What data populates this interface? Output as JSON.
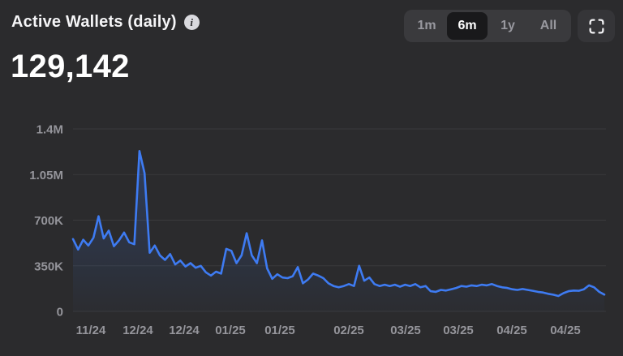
{
  "header": {
    "title": "Active Wallets (daily)",
    "info_icon": "info",
    "value": "129,142",
    "ranges": [
      {
        "label": "1m",
        "selected": false
      },
      {
        "label": "6m",
        "selected": true
      },
      {
        "label": "1y",
        "selected": false
      },
      {
        "label": "All",
        "selected": false
      }
    ],
    "fullscreen_icon": "fullscreen-expand"
  },
  "colors": {
    "background": "#2b2b2d",
    "line": "#3e7bf2",
    "grid": "#3a3a3d",
    "axis_text": "#95959b",
    "selected_pill": "#19191b",
    "segment_bg": "#3a3a3d"
  },
  "chart_data": {
    "type": "line",
    "title": "Active Wallets (daily)",
    "current_value": 129142,
    "unit": "wallets",
    "legend": "none",
    "grid": "horizontal",
    "ylim": [
      0,
      1400000
    ],
    "y_axis": {
      "ticks": [
        "1.4M",
        "1.05M",
        "700K",
        "350K",
        "0"
      ],
      "tick_values": [
        1400000,
        1050000,
        700000,
        350000,
        0
      ]
    },
    "x_axis": {
      "ticks": [
        "11/24",
        "12/24",
        "12/24",
        "01/25",
        "01/25",
        "02/25",
        "03/25",
        "03/25",
        "04/25",
        "04/25"
      ],
      "tick_x": [
        112,
        170,
        227,
        284,
        345,
        430,
        500,
        565,
        631,
        697
      ]
    },
    "series": [
      {
        "name": "Active Wallets (daily)",
        "color": "#3e7bf2",
        "values_thousands": [
          555,
          475,
          550,
          505,
          565,
          730,
          560,
          620,
          500,
          545,
          605,
          530,
          515,
          1230,
          1060,
          450,
          505,
          430,
          395,
          440,
          360,
          390,
          345,
          370,
          335,
          350,
          300,
          275,
          305,
          290,
          480,
          465,
          370,
          430,
          600,
          430,
          370,
          545,
          330,
          250,
          285,
          260,
          255,
          270,
          340,
          215,
          245,
          290,
          275,
          255,
          215,
          195,
          185,
          195,
          210,
          195,
          350,
          235,
          260,
          210,
          195,
          205,
          195,
          205,
          190,
          205,
          195,
          210,
          185,
          195,
          155,
          150,
          165,
          160,
          170,
          180,
          195,
          190,
          200,
          195,
          205,
          200,
          210,
          195,
          185,
          180,
          170,
          165,
          172,
          165,
          158,
          150,
          145,
          135,
          128,
          118,
          140,
          155,
          160,
          158,
          170,
          200,
          185,
          150,
          129
        ]
      }
    ]
  }
}
